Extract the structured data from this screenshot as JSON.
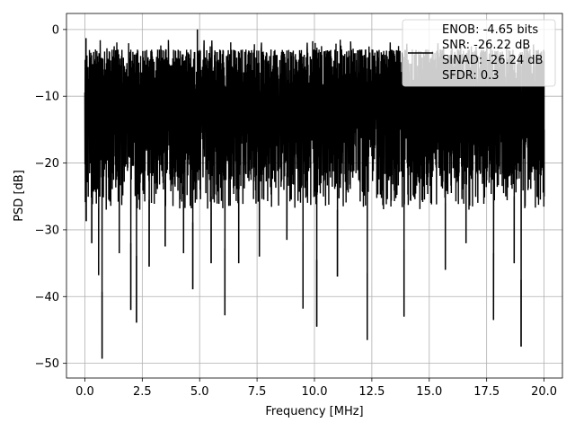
{
  "chart_data": {
    "type": "line",
    "xlabel": "Frequency [MHz]",
    "ylabel": "PSD [dB]",
    "xlim": [
      -0.8,
      20.8
    ],
    "ylim": [
      -52.2,
      2.4
    ],
    "xticks": [
      0.0,
      2.5,
      5.0,
      7.5,
      10.0,
      12.5,
      15.0,
      17.5,
      20.0
    ],
    "xtick_labels": [
      "0.0",
      "2.5",
      "5.0",
      "7.5",
      "10.0",
      "12.5",
      "15.0",
      "17.5",
      "20.0"
    ],
    "yticks": [
      0,
      -10,
      -20,
      -30,
      -40,
      -50
    ],
    "ytick_labels": [
      "0",
      "−10",
      "−20",
      "−30",
      "−40",
      "−50"
    ],
    "grid": true,
    "legend_placement": "upper right",
    "series": [
      {
        "name": "",
        "color": "#000000",
        "x_range": [
          0.0,
          20.0
        ],
        "typical_band_db": [
          -27,
          -3
        ],
        "notable_points": [
          {
            "x": 0.05,
            "y": -1.3
          },
          {
            "x": 0.06,
            "y": -28.7
          },
          {
            "x": 0.3,
            "y": -32
          },
          {
            "x": 0.6,
            "y": -36.8
          },
          {
            "x": 0.75,
            "y": -49.3
          },
          {
            "x": 1.5,
            "y": -33.5
          },
          {
            "x": 2.0,
            "y": -42
          },
          {
            "x": 2.25,
            "y": -43.9
          },
          {
            "x": 2.8,
            "y": -35.5
          },
          {
            "x": 3.5,
            "y": -32.5
          },
          {
            "x": 4.3,
            "y": -33.5
          },
          {
            "x": 4.7,
            "y": -38.9
          },
          {
            "x": 4.9,
            "y": 0.0
          },
          {
            "x": 5.5,
            "y": -35
          },
          {
            "x": 6.1,
            "y": -42.8
          },
          {
            "x": 6.7,
            "y": -35
          },
          {
            "x": 7.6,
            "y": -34
          },
          {
            "x": 8.8,
            "y": -31.5
          },
          {
            "x": 9.5,
            "y": -41.8
          },
          {
            "x": 10.1,
            "y": -44.5
          },
          {
            "x": 11.0,
            "y": -37
          },
          {
            "x": 12.3,
            "y": -46.5
          },
          {
            "x": 13.9,
            "y": -43
          },
          {
            "x": 15.7,
            "y": -36
          },
          {
            "x": 16.6,
            "y": -32
          },
          {
            "x": 17.8,
            "y": -43.5
          },
          {
            "x": 18.7,
            "y": -35
          },
          {
            "x": 19.0,
            "y": -47.5
          },
          {
            "x": 20.0,
            "y": -25
          }
        ]
      }
    ],
    "legend": {
      "handle_color": "#000000",
      "lines": [
        "ENOB: -4.65 bits",
        "SNR: -26.22 dB",
        "SINAD: -26.24 dB",
        "SFDR: 0.3"
      ]
    }
  }
}
